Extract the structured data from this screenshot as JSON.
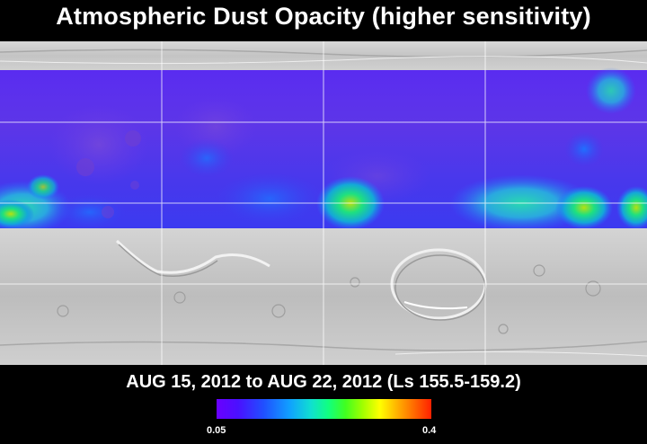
{
  "title": "Atmospheric Dust Opacity (higher sensitivity)",
  "date_range": "AUG 15, 2012 to AUG 22, 2012 (Ls 155.5-159.2)",
  "colorbar": {
    "min_label": "0.05",
    "max_label": "0.4",
    "colors": [
      "#6a00ff",
      "#2050ff",
      "#10e0d0",
      "#40ff20",
      "#ffff00",
      "#ff2000"
    ]
  }
}
